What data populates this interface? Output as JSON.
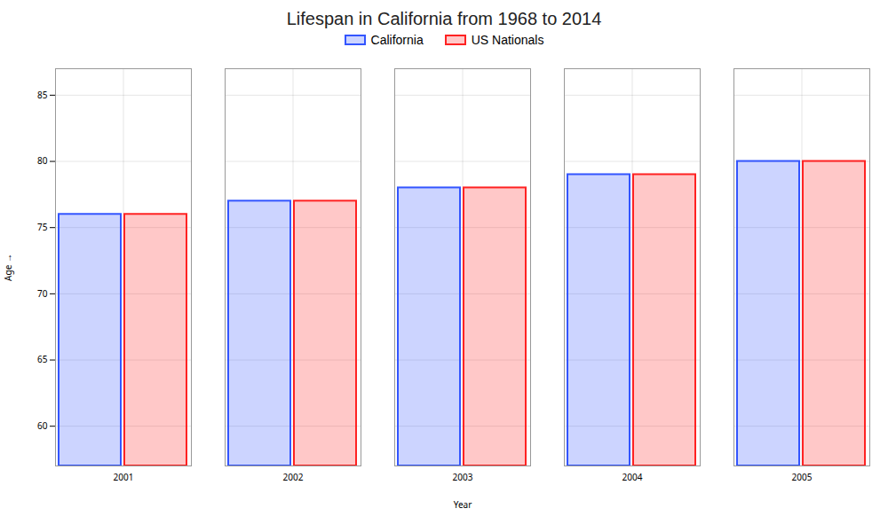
{
  "chart_data": {
    "type": "bar",
    "title": "Lifespan in California from 1968 to 2014",
    "x_label": "Year",
    "y_label": "Age",
    "categories": [
      "2001",
      "2002",
      "2003",
      "2004",
      "2005"
    ],
    "series": [
      {
        "name": "California",
        "color": "#3355ff",
        "values": [
          76,
          77,
          78,
          79,
          80
        ]
      },
      {
        "name": "US Nationals",
        "color": "#ff2222",
        "values": [
          76,
          77,
          78,
          79,
          80
        ]
      }
    ],
    "ylim": [
      57,
      87
    ],
    "yticks": [
      60,
      65,
      70,
      75,
      80,
      85
    ],
    "grid": true,
    "legend": "top"
  }
}
